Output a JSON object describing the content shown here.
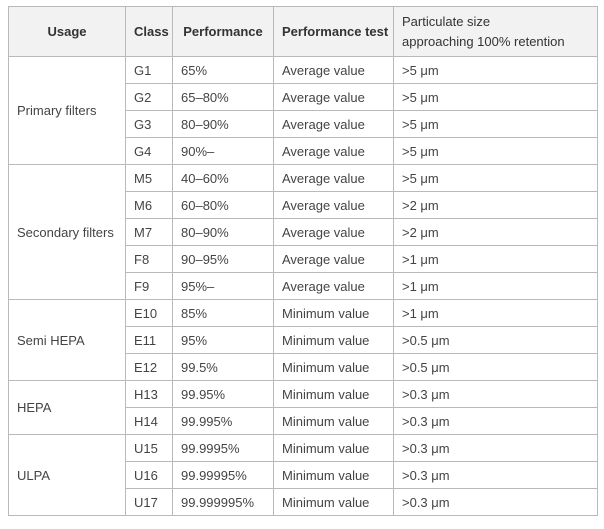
{
  "table": {
    "header": {
      "usage": "Usage",
      "class": "Class",
      "performance": "Performance",
      "performance_test": "Performance test",
      "particulate_line1": "Particulate size",
      "particulate_line2": "approaching 100% retention"
    },
    "colors": {
      "header_bg": "#f2f2f2",
      "border": "#b9b9b9",
      "header_text": "#333333",
      "body_text": "#444444",
      "body_bg": "#ffffff"
    },
    "groups": [
      {
        "usage": "Primary filters",
        "rows": [
          {
            "class": "G1",
            "performance": "65%",
            "test": "Average value",
            "size": ">5 μm"
          },
          {
            "class": "G2",
            "performance": "65–80%",
            "test": "Average value",
            "size": ">5 μm"
          },
          {
            "class": "G3",
            "performance": "80–90%",
            "test": "Average value",
            "size": ">5 μm"
          },
          {
            "class": "G4",
            "performance": "90%–",
            "test": "Average value",
            "size": ">5 μm"
          }
        ]
      },
      {
        "usage": "Secondary filters",
        "rows": [
          {
            "class": "M5",
            "performance": "40–60%",
            "test": "Average value",
            "size": ">5 μm"
          },
          {
            "class": "M6",
            "performance": "60–80%",
            "test": "Average value",
            "size": ">2 μm"
          },
          {
            "class": "M7",
            "performance": "80–90%",
            "test": "Average value",
            "size": ">2 μm"
          },
          {
            "class": "F8",
            "performance": "90–95%",
            "test": "Average value",
            "size": ">1 μm"
          },
          {
            "class": "F9",
            "performance": "95%–",
            "test": "Average value",
            "size": ">1 μm"
          }
        ]
      },
      {
        "usage": "Semi HEPA",
        "rows": [
          {
            "class": "E10",
            "performance": "85%",
            "test": "Minimum value",
            "size": ">1 μm"
          },
          {
            "class": "E11",
            "performance": "95%",
            "test": "Minimum value",
            "size": ">0.5 μm"
          },
          {
            "class": "E12",
            "performance": "99.5%",
            "test": "Minimum value",
            "size": ">0.5 μm"
          }
        ]
      },
      {
        "usage": "HEPA",
        "rows": [
          {
            "class": "H13",
            "performance": "99.95%",
            "test": "Minimum value",
            "size": ">0.3 μm"
          },
          {
            "class": "H14",
            "performance": "99.995%",
            "test": "Minimum value",
            "size": ">0.3 μm"
          }
        ]
      },
      {
        "usage": "ULPA",
        "rows": [
          {
            "class": "U15",
            "performance": "99.9995%",
            "test": "Minimum value",
            "size": ">0.3 μm"
          },
          {
            "class": "U16",
            "performance": "99.99995%",
            "test": "Minimum value",
            "size": ">0.3 μm"
          },
          {
            "class": "U17",
            "performance": "99.999995%",
            "test": "Minimum value",
            "size": ">0.3 μm"
          }
        ]
      }
    ]
  }
}
